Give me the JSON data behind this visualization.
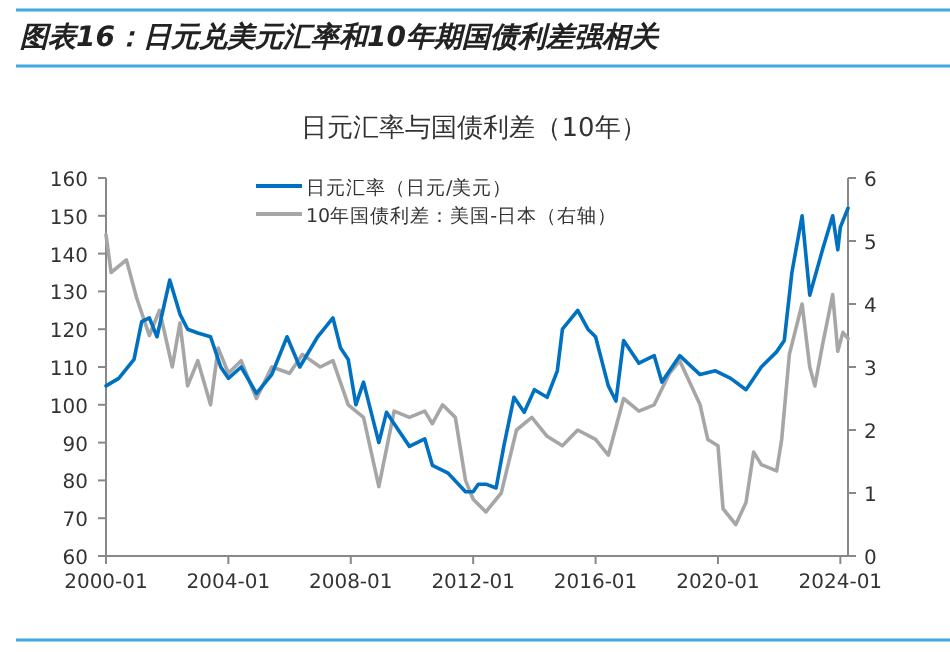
{
  "chart_data": {
    "type": "line",
    "title": "图表16：日元兑美元汇率和10年期国债利差强相关",
    "subtitle": "日元汇率与国债利差（10年）",
    "legend": "top left",
    "grid": false,
    "xlim": [
      "2000-01",
      "2024-04"
    ],
    "xticks": [
      "2000-01",
      "2004-01",
      "2008-01",
      "2012-01",
      "2016-01",
      "2020-01",
      "2024-01"
    ],
    "ylim": [
      60,
      160
    ],
    "yticks": [
      60,
      70,
      80,
      90,
      100,
      110,
      120,
      130,
      140,
      150,
      160
    ],
    "y2lim": [
      0,
      6
    ],
    "y2ticks": [
      0,
      1,
      2,
      3,
      4,
      5,
      6
    ],
    "series": [
      {
        "name": "日元汇率（日元/美元）",
        "color": "#0070c0",
        "x": [
          "2000-01",
          "2000-06",
          "2000-12",
          "2001-03",
          "2001-06",
          "2001-09",
          "2002-02",
          "2002-06",
          "2002-09",
          "2003-01",
          "2003-06",
          "2003-10",
          "2004-01",
          "2004-06",
          "2004-12",
          "2005-06",
          "2005-12",
          "2006-05",
          "2006-12",
          "2007-06",
          "2007-09",
          "2007-12",
          "2008-03",
          "2008-06",
          "2008-12",
          "2009-03",
          "2009-06",
          "2009-12",
          "2010-06",
          "2010-09",
          "2011-03",
          "2011-10",
          "2012-01",
          "2012-03",
          "2012-06",
          "2012-10",
          "2013-01",
          "2013-05",
          "2013-09",
          "2014-01",
          "2014-06",
          "2014-10",
          "2014-12",
          "2015-06",
          "2015-10",
          "2016-01",
          "2016-06",
          "2016-09",
          "2016-12",
          "2017-06",
          "2017-12",
          "2018-03",
          "2018-10",
          "2019-06",
          "2019-12",
          "2020-03",
          "2020-06",
          "2020-12",
          "2021-06",
          "2021-12",
          "2022-03",
          "2022-06",
          "2022-10",
          "2023-01",
          "2023-06",
          "2023-10",
          "2023-12",
          "2024-01",
          "2024-04"
        ],
        "values": [
          105,
          107,
          112,
          122,
          123,
          118,
          133,
          124,
          120,
          119,
          118,
          110,
          107,
          110,
          103,
          108,
          118,
          110,
          118,
          123,
          115,
          112,
          100,
          106,
          90,
          98,
          95,
          89,
          91,
          84,
          82,
          77,
          77,
          79,
          79,
          78,
          89,
          102,
          98,
          104,
          102,
          109,
          120,
          125,
          120,
          118,
          105,
          101,
          117,
          111,
          113,
          106,
          113,
          108,
          109,
          108,
          107,
          104,
          110,
          114,
          117,
          135,
          150,
          129,
          141,
          150,
          141,
          147,
          152
        ]
      },
      {
        "name": "10年国债利差：美国-日本（右轴）",
        "color": "#a6a6a6",
        "axis": "y2",
        "x": [
          "2000-01",
          "2000-03",
          "2000-09",
          "2001-01",
          "2001-06",
          "2001-10",
          "2002-03",
          "2002-06",
          "2002-09",
          "2003-01",
          "2003-06",
          "2003-09",
          "2004-01",
          "2004-06",
          "2004-12",
          "2005-06",
          "2006-01",
          "2006-06",
          "2007-01",
          "2007-06",
          "2007-12",
          "2008-06",
          "2008-12",
          "2009-06",
          "2009-12",
          "2010-06",
          "2010-09",
          "2011-01",
          "2011-06",
          "2011-10",
          "2012-01",
          "2012-06",
          "2012-12",
          "2013-06",
          "2013-12",
          "2014-06",
          "2014-12",
          "2015-06",
          "2016-01",
          "2016-06",
          "2016-12",
          "2017-06",
          "2017-12",
          "2018-06",
          "2018-10",
          "2019-06",
          "2019-09",
          "2020-01",
          "2020-03",
          "2020-08",
          "2020-12",
          "2021-03",
          "2021-06",
          "2021-12",
          "2022-02",
          "2022-05",
          "2022-10",
          "2023-01",
          "2023-03",
          "2023-06",
          "2023-10",
          "2023-12",
          "2024-02",
          "2024-04"
        ],
        "values": [
          5.1,
          4.5,
          4.7,
          4.1,
          3.5,
          3.9,
          3.0,
          3.7,
          2.7,
          3.1,
          2.4,
          3.3,
          2.9,
          3.1,
          2.5,
          3.0,
          2.9,
          3.2,
          3.0,
          3.1,
          2.4,
          2.2,
          1.1,
          2.3,
          2.2,
          2.3,
          2.1,
          2.4,
          2.2,
          1.2,
          0.9,
          0.7,
          1.0,
          2.0,
          2.2,
          1.9,
          1.75,
          2.0,
          1.85,
          1.6,
          2.5,
          2.3,
          2.4,
          2.9,
          3.1,
          2.4,
          1.85,
          1.75,
          0.75,
          0.5,
          0.85,
          1.65,
          1.45,
          1.35,
          1.85,
          3.2,
          4.0,
          3.0,
          2.7,
          3.35,
          4.15,
          3.25,
          3.55,
          3.45
        ]
      }
    ]
  }
}
